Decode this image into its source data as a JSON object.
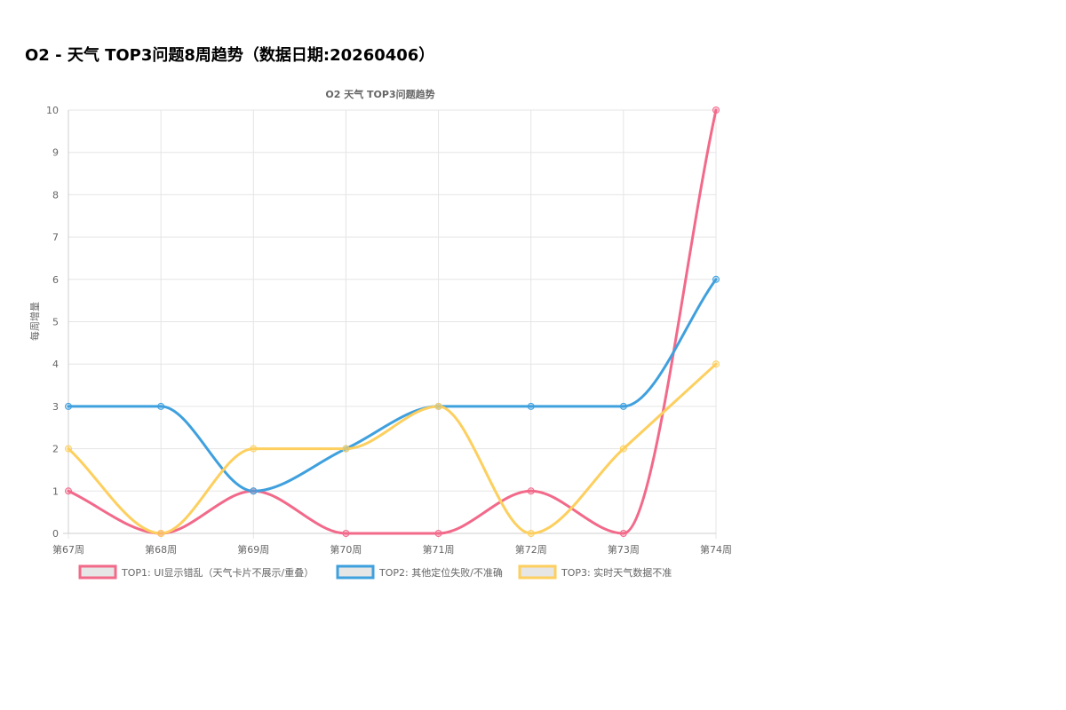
{
  "page": {
    "title": "O2 - 天气 TOP3问题8周趋势（数据日期:20260406）"
  },
  "chart_data": {
    "type": "line",
    "title": "O2 天气 TOP3问题趋势",
    "xlabel": "",
    "ylabel": "每周增量",
    "categories": [
      "第67周",
      "第68周",
      "第69周",
      "第70周",
      "第71周",
      "第72周",
      "第73周",
      "第74周"
    ],
    "ylim": [
      0,
      10
    ],
    "yticks": [
      0,
      1,
      2,
      3,
      4,
      5,
      6,
      7,
      8,
      9,
      10
    ],
    "grid": true,
    "legend_position": "bottom",
    "series": [
      {
        "name": "TOP1: UI显示错乱（天气卡片不展示/重叠）",
        "values": [
          1,
          0,
          1,
          0,
          0,
          1,
          0,
          10
        ],
        "color": "#f2698a"
      },
      {
        "name": "TOP2: 其他定位失败/不准确",
        "values": [
          3,
          3,
          1,
          2,
          3,
          3,
          3,
          6
        ],
        "color": "#3fa0de"
      },
      {
        "name": "TOP3: 实时天气数据不准",
        "values": [
          2,
          0,
          2,
          2,
          3,
          0,
          2,
          4
        ],
        "color": "#fdcf5e"
      }
    ]
  }
}
